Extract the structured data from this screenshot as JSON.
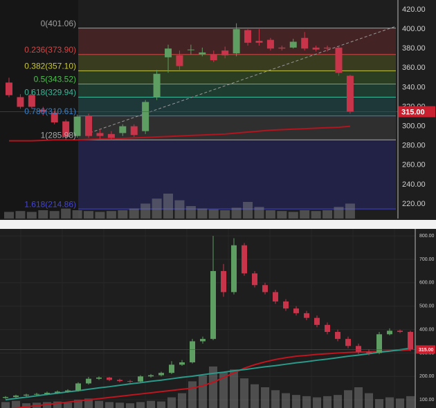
{
  "chart_data": [
    {
      "type": "candlestick",
      "ylim": [
        205,
        430
      ],
      "yticks": [
        {
          "value": 220,
          "label": "220.00"
        },
        {
          "value": 240,
          "label": "240.00"
        },
        {
          "value": 260,
          "label": "260.00"
        },
        {
          "value": 280,
          "label": "280.00"
        },
        {
          "value": 300,
          "label": "300.00"
        },
        {
          "value": 320,
          "label": "320.00"
        },
        {
          "value": 340,
          "label": "340.00"
        },
        {
          "value": 360,
          "label": "360.00"
        },
        {
          "value": 380,
          "label": "380.00"
        },
        {
          "value": 400,
          "label": "400.00"
        },
        {
          "value": 420,
          "label": "420.00"
        }
      ],
      "up_color": "#5e9e62",
      "down_color": "#c8354a",
      "open": [
        345,
        330,
        332,
        317,
        314,
        305,
        290,
        311,
        293,
        292,
        293,
        300,
        295,
        330,
        371,
        373,
        378.5,
        374,
        374,
        378,
        375,
        399,
        388,
        389,
        381,
        381,
        391,
        381,
        381,
        381,
        352
      ],
      "close": [
        332,
        320,
        320,
        315,
        304,
        289,
        310,
        290,
        290,
        288,
        300,
        291,
        325,
        354,
        380,
        362,
        379,
        376,
        368,
        373,
        400,
        386,
        386,
        380,
        380,
        387,
        380,
        379,
        380,
        355,
        315
      ],
      "high": [
        350,
        333,
        338,
        320,
        316,
        307,
        312,
        313,
        297,
        295,
        302,
        302,
        327,
        358,
        384,
        378,
        384,
        381,
        378,
        382,
        406,
        400,
        400,
        391,
        383,
        390,
        397,
        383,
        383,
        383,
        353
      ],
      "low": [
        330,
        318,
        318,
        311,
        302,
        286,
        288,
        288,
        287,
        286,
        290,
        289,
        292,
        327,
        355,
        358,
        374,
        372,
        366,
        370,
        372,
        383,
        383,
        378,
        378,
        380,
        378,
        377,
        377,
        352,
        313
      ],
      "volume": [
        8,
        9,
        8,
        10,
        9,
        12,
        10,
        9,
        8,
        9,
        10,
        12,
        18,
        24,
        30,
        22,
        15,
        12,
        11,
        10,
        13,
        20,
        14,
        10,
        9,
        8,
        10,
        9,
        10,
        14,
        18
      ],
      "moving_averages": [
        {
          "color": "#b3141e",
          "values": [
            285,
            285,
            285,
            285.5,
            286,
            286,
            286,
            286.5,
            287,
            287,
            287.5,
            288,
            288.5,
            289,
            289.5,
            290,
            290.5,
            291,
            291.5,
            292,
            293,
            294,
            295,
            296,
            296.5,
            297,
            297.5,
            298,
            298.5,
            299,
            300
          ]
        }
      ],
      "fib_levels": [
        {
          "label": "0(401.06)",
          "value": 401.06,
          "color": "#a0a0a0",
          "band": "#4a2424"
        },
        {
          "label": "0.236(373.90)",
          "value": 373.9,
          "color": "#d04848",
          "band": "#3e4220"
        },
        {
          "label": "0.382(357.10)",
          "value": 357.1,
          "color": "#c8c83a",
          "band": "#2e4422"
        },
        {
          "label": "0.5(343.52)",
          "value": 343.52,
          "color": "#4cc04c",
          "band": "#1f4232"
        },
        {
          "label": "0.618(329.94)",
          "value": 329.94,
          "color": "#3cb89a",
          "band": "#1f3c3e"
        },
        {
          "label": "0.786(310.61)",
          "value": 310.61,
          "color": "#3a7fc4",
          "band": "#333333"
        },
        {
          "label": "1(285.98)",
          "value": 285.98,
          "color": "#aaaaaa",
          "band": "#23234d"
        },
        {
          "label": "1.618(214.86)",
          "value": 214.86,
          "color": "#4545c8"
        }
      ],
      "last_price": {
        "value": 315,
        "label": "315.00",
        "color": "#c8202e"
      }
    },
    {
      "type": "candlestick",
      "ylim": [
        65,
        830
      ],
      "yticks": [
        {
          "value": 100,
          "label": "100.00"
        },
        {
          "value": 200,
          "label": "200.00"
        },
        {
          "value": 300,
          "label": "300.00"
        },
        {
          "value": 400,
          "label": "400.00"
        },
        {
          "value": 500,
          "label": "500.00"
        },
        {
          "value": 600,
          "label": "600.00"
        },
        {
          "value": 700,
          "label": "700.00"
        },
        {
          "value": 800,
          "label": "800.00"
        }
      ],
      "up_color": "#5e9e62",
      "down_color": "#c8354a",
      "open": [
        108,
        112,
        118,
        122,
        125,
        130,
        135,
        140,
        170,
        190,
        195,
        185,
        180,
        178,
        200,
        205,
        215,
        250,
        260,
        350,
        360,
        650,
        560,
        760,
        640,
        590,
        560,
        520,
        490,
        470,
        450,
        420,
        390,
        360,
        330,
        305,
        300,
        380,
        395,
        390
      ],
      "close": [
        112,
        118,
        122,
        125,
        130,
        135,
        140,
        170,
        190,
        195,
        185,
        180,
        178,
        200,
        205,
        215,
        250,
        260,
        350,
        360,
        650,
        560,
        760,
        640,
        590,
        560,
        520,
        490,
        470,
        450,
        420,
        390,
        360,
        330,
        305,
        300,
        380,
        395,
        390,
        315
      ],
      "high": [
        116,
        122,
        126,
        130,
        135,
        140,
        145,
        175,
        198,
        200,
        198,
        190,
        185,
        205,
        210,
        220,
        265,
        270,
        360,
        370,
        800,
        680,
        790,
        770,
        650,
        600,
        570,
        530,
        500,
        480,
        460,
        430,
        400,
        370,
        340,
        315,
        390,
        405,
        400,
        395
      ],
      "low": [
        104,
        108,
        112,
        116,
        120,
        125,
        130,
        135,
        165,
        185,
        180,
        175,
        172,
        175,
        195,
        200,
        210,
        245,
        255,
        340,
        355,
        540,
        550,
        630,
        580,
        550,
        510,
        480,
        460,
        440,
        410,
        380,
        350,
        320,
        295,
        290,
        295,
        375,
        385,
        308
      ],
      "volume": [
        10,
        12,
        8,
        9,
        10,
        11,
        9,
        14,
        16,
        12,
        10,
        9,
        8,
        10,
        12,
        11,
        18,
        25,
        45,
        55,
        70,
        60,
        65,
        50,
        40,
        35,
        30,
        25,
        22,
        20,
        18,
        20,
        22,
        30,
        35,
        25,
        15,
        18,
        16,
        20
      ],
      "moving_averages": [
        {
          "color": "#c0141e",
          "values": [
            60,
            65,
            70,
            75,
            80,
            85,
            90,
            95,
            100,
            105,
            110,
            115,
            120,
            125,
            130,
            135,
            140,
            145,
            150,
            160,
            175,
            195,
            215,
            235,
            250,
            262,
            272,
            280,
            286,
            290,
            294,
            297,
            300,
            302,
            304,
            305,
            307,
            309,
            311,
            313
          ]
        },
        {
          "color": "#2a9a8a",
          "values": [
            100,
            106,
            111,
            117,
            123,
            128,
            134,
            139,
            145,
            151,
            156,
            162,
            168,
            173,
            179,
            184,
            190,
            196,
            201,
            207,
            213,
            218,
            224,
            229,
            235,
            241,
            246,
            252,
            258,
            263,
            269,
            274,
            280,
            286,
            291,
            297,
            303,
            308,
            314,
            320
          ]
        }
      ],
      "last_price": {
        "value": 315,
        "label": "315.00",
        "color": "#c8202e"
      }
    }
  ]
}
